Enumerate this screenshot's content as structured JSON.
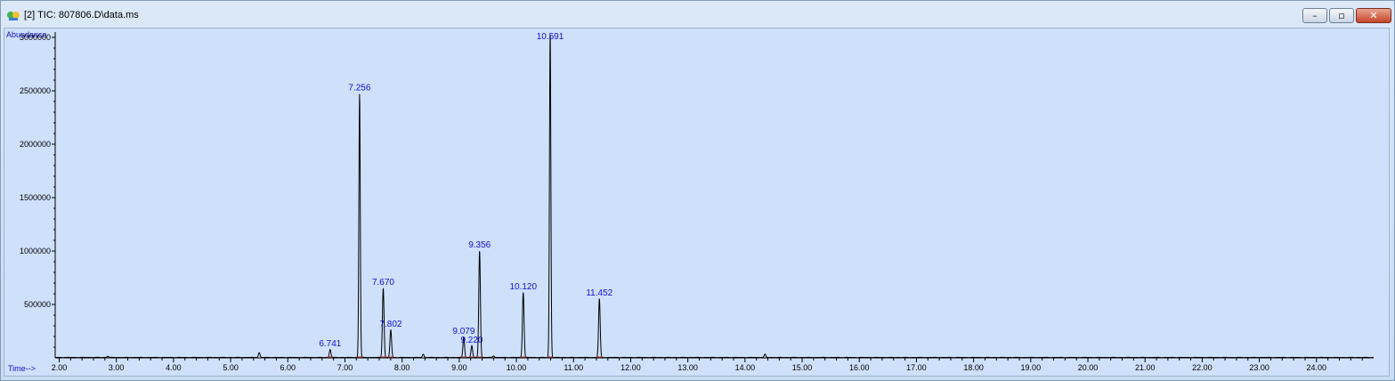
{
  "window": {
    "title": "[2] TIC: 807806.D\\data.ms",
    "controls": {
      "minimize": "–",
      "restore": "▫",
      "close": "✕"
    }
  },
  "colors": {
    "background": "#cfe0fa",
    "trace": "#000000",
    "peak_label": "#1010d0",
    "baseline": "#c0392b",
    "axis_label": "#1010d0"
  },
  "chart_data": {
    "type": "line",
    "title": "",
    "xlabel": "Time-->",
    "ylabel": "Abundance",
    "xlim": [
      1.93,
      25.0
    ],
    "ylim": [
      0,
      3050000
    ],
    "x_ticks": [
      "2.00",
      "3.00",
      "4.00",
      "5.00",
      "6.00",
      "7.00",
      "8.00",
      "9.00",
      "10.00",
      "11.00",
      "12.00",
      "13.00",
      "14.00",
      "15.00",
      "16.00",
      "17.00",
      "18.00",
      "19.00",
      "20.00",
      "21.00",
      "22.00",
      "23.00",
      "24.00"
    ],
    "y_ticks": [
      "500000",
      "1000000",
      "1500000",
      "2000000",
      "2500000",
      "3000000"
    ],
    "peaks": [
      {
        "rt": 2.85,
        "abundance": 12000
      },
      {
        "rt": 5.5,
        "abundance": 45000
      },
      {
        "rt": 6.741,
        "abundance": 75000,
        "label": "6.741"
      },
      {
        "rt": 7.256,
        "abundance": 2470000,
        "label": "7.256"
      },
      {
        "rt": 7.67,
        "abundance": 650000,
        "label": "7.670"
      },
      {
        "rt": 7.802,
        "abundance": 260000,
        "label": "7.802"
      },
      {
        "rt": 8.37,
        "abundance": 30000
      },
      {
        "rt": 9.079,
        "abundance": 190000,
        "label": "9.079"
      },
      {
        "rt": 9.22,
        "abundance": 110000,
        "label": "9.220"
      },
      {
        "rt": 9.356,
        "abundance": 1000000,
        "label": "9.356"
      },
      {
        "rt": 9.6,
        "abundance": 15000
      },
      {
        "rt": 10.12,
        "abundance": 610000,
        "label": "10.120"
      },
      {
        "rt": 10.591,
        "abundance": 3050000,
        "label": "10.591"
      },
      {
        "rt": 11.452,
        "abundance": 550000,
        "label": "11.452"
      },
      {
        "rt": 14.35,
        "abundance": 30000
      }
    ]
  }
}
